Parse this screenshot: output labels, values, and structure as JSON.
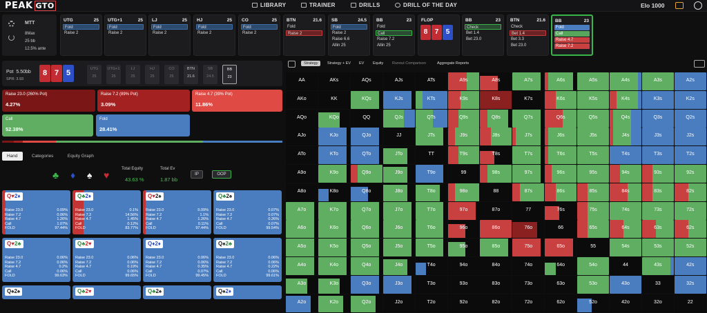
{
  "nav": {
    "logo_a": "PEAK",
    "logo_b": "GTO",
    "library": "LIBRARY",
    "trainer": "TRAINER",
    "drills": "DRILLS",
    "drill_of_day": "DRILL OF THE DAY",
    "elo": "Elo 1000"
  },
  "settings": {
    "game": "MTT",
    "format": "8Max",
    "depth": "25 bb",
    "ante": "12.5% ante"
  },
  "positions": [
    {
      "pos": "UTG",
      "stack": "25",
      "acts": [
        {
          "t": "Fold",
          "s": "sel-blue"
        },
        {
          "t": "Raise 2",
          "s": ""
        }
      ]
    },
    {
      "pos": "UTG+1",
      "stack": "25",
      "acts": [
        {
          "t": "Fold",
          "s": "sel-blue"
        },
        {
          "t": "Raise 2",
          "s": ""
        }
      ]
    },
    {
      "pos": "LJ",
      "stack": "25",
      "acts": [
        {
          "t": "Fold",
          "s": "sel-blue"
        },
        {
          "t": "Raise 2",
          "s": ""
        }
      ]
    },
    {
      "pos": "HJ",
      "stack": "25",
      "acts": [
        {
          "t": "Fold",
          "s": "sel-blue"
        },
        {
          "t": "Raise 2",
          "s": ""
        }
      ]
    },
    {
      "pos": "CO",
      "stack": "25",
      "acts": [
        {
          "t": "Fold",
          "s": "sel-blue"
        },
        {
          "t": "Raise 2",
          "s": ""
        }
      ]
    },
    {
      "pos": "BTN",
      "stack": "21.6",
      "acts": [
        {
          "t": "Fold",
          "s": ""
        },
        {
          "t": "Raise 2",
          "s": "sel-red"
        }
      ]
    },
    {
      "pos": "SB",
      "stack": "24.5",
      "acts": [
        {
          "t": "Fold",
          "s": "sel-blue"
        },
        {
          "t": "Raise 2",
          "s": ""
        },
        {
          "t": "Raise 6.6",
          "s": ""
        },
        {
          "t": "Allin 25",
          "s": ""
        }
      ]
    },
    {
      "pos": "BB",
      "stack": "23",
      "acts": [
        {
          "t": "Fold",
          "s": ""
        },
        {
          "t": "Call",
          "s": "sel-green"
        },
        {
          "t": "Raise 7.2",
          "s": ""
        },
        {
          "t": "Allin 25",
          "s": ""
        }
      ]
    },
    {
      "pos": "FLOP",
      "stack": "",
      "acts": []
    },
    {
      "pos": "BB",
      "stack": "23",
      "acts": [
        {
          "t": "Check",
          "s": "sel-green"
        },
        {
          "t": "Bet 1.4",
          "s": ""
        },
        {
          "t": "Bet 23.0",
          "s": ""
        }
      ]
    },
    {
      "pos": "BTN",
      "stack": "21.6",
      "acts": [
        {
          "t": "Check",
          "s": ""
        },
        {
          "t": "Bet 1.4",
          "s": "sel-red"
        },
        {
          "t": "Bet 3.3",
          "s": ""
        },
        {
          "t": "Bet 23.0",
          "s": ""
        }
      ]
    },
    {
      "pos": "BB",
      "stack": "23",
      "acts": [
        {
          "t": "Fold",
          "s": "fill-blue"
        },
        {
          "t": "Call",
          "s": "fill-green"
        },
        {
          "t": "Raise 4.7",
          "s": "fill-red"
        },
        {
          "t": "Raise 7.2",
          "s": "fill-red"
        }
      ]
    }
  ],
  "flop_cards": [
    {
      "r": "8",
      "c": "c-red"
    },
    {
      "r": "7",
      "c": "c-red"
    },
    {
      "r": "5",
      "c": "c-blue"
    }
  ],
  "pot": {
    "label": "Pot",
    "value": "5.50bb",
    "spr": "SPR: 3.93"
  },
  "seats": [
    {
      "n": "UTG",
      "v": "25"
    },
    {
      "n": "UTG+1",
      "v": "25"
    },
    {
      "n": "LJ",
      "v": "25"
    },
    {
      "n": "HJ",
      "v": "25"
    },
    {
      "n": "CO",
      "v": "25"
    },
    {
      "n": "BTN",
      "v": "21.6"
    },
    {
      "n": "SB",
      "v": "24.5"
    },
    {
      "n": "BB",
      "v": "23"
    }
  ],
  "strategy": [
    {
      "label": "Raise 23.0 (260% Pot)",
      "value": "4.27%",
      "color": "#7a1616"
    },
    {
      "label": "Raise 7.2 (89% Pot)",
      "value": "3.09%",
      "color": "#a32121"
    },
    {
      "label": "Raise 4.7 (39% Pot)",
      "value": "11.86%",
      "color": "#e04a45"
    },
    {
      "label": "Call",
      "value": "52.38%",
      "color": "#5fae62"
    },
    {
      "label": "Fold",
      "value": "28.41%",
      "color": "#4a7dc0"
    }
  ],
  "tabs": {
    "hand": "Hand",
    "categories": "Categories",
    "equity_graph": "Equity Graph"
  },
  "equity": {
    "total_equity_label": "Total Equity",
    "total_equity": "43.63 %",
    "total_ev_label": "Total Ev",
    "total_ev": "1.87 bb",
    "ip": "IP",
    "oop": "OOP"
  },
  "combos": [
    {
      "c1": "Q",
      "s1": "♥",
      "k1": "r",
      "c2": "2",
      "s2": "♦",
      "k2": "b",
      "vals": [
        "0.09%",
        "0.06%",
        "1.26%",
        "1.07%",
        "97.44%"
      ],
      "red": 0.05
    },
    {
      "c1": "Q",
      "s1": "♣",
      "k1": "g",
      "c2": "2",
      "s2": "♦",
      "k2": "b",
      "vals": [
        "0.1%",
        "14.56%",
        "1.45%",
        "0.12%",
        "83.77%"
      ],
      "red": 0.16
    },
    {
      "c1": "Q",
      "s1": "♥",
      "k1": "r",
      "c2": "2",
      "s2": "♠",
      "k2": "k",
      "vals": [
        "0.09%",
        "1.1%",
        "1.26%",
        "0.11%",
        "97.44%"
      ],
      "red": 0.04
    },
    {
      "c1": "Q",
      "s1": "♣",
      "k1": "g",
      "c2": "2",
      "s2": "♠",
      "k2": "k",
      "vals": [
        "0.07%",
        "0.07%",
        "0.26%",
        "0.07%",
        "99.54%"
      ],
      "red": 0.01
    },
    {
      "c1": "Q",
      "s1": "♥",
      "k1": "r",
      "c2": "2",
      "s2": "♣",
      "k2": "g",
      "vals": [
        "0.06%",
        "0.06%",
        "0.2%",
        "0.06%",
        "99.63%"
      ],
      "red": 0.01
    },
    {
      "c1": "Q",
      "s1": "♣",
      "k1": "g",
      "c2": "2",
      "s2": "♥",
      "k2": "r",
      "vals": [
        "0.06%",
        "0.06%",
        "0.19%",
        "0.06%",
        "99.65%"
      ],
      "red": 0.01
    },
    {
      "c1": "Q",
      "s1": "♦",
      "k1": "b",
      "c2": "2",
      "s2": "♦",
      "k2": "b",
      "vals": [
        "0.06%",
        "0.06%",
        "0.35%",
        "0.07%",
        "99.45%"
      ],
      "red": 0.01
    },
    {
      "c1": "Q",
      "s1": "♠",
      "k1": "k",
      "c2": "2",
      "s2": "♣",
      "k2": "g",
      "vals": [
        "0.06%",
        "0.06%",
        "0.22%",
        "0.06%",
        "99.61%"
      ],
      "red": 0.01
    },
    {
      "c1": "Q",
      "s1": "♠",
      "k1": "k",
      "c2": "2",
      "s2": "♠",
      "k2": "k",
      "vals": [],
      "red": 0
    },
    {
      "c1": "Q",
      "s1": "♣",
      "k1": "g",
      "c2": "2",
      "s2": "♥",
      "k2": "r",
      "vals": [],
      "red": 0
    },
    {
      "c1": "Q",
      "s1": "♣",
      "k1": "g",
      "c2": "2",
      "s2": "♠",
      "k2": "k",
      "vals": [],
      "red": 0
    },
    {
      "c1": "Q",
      "s1": "♠",
      "k1": "k",
      "c2": "2",
      "s2": "♦",
      "k2": "b",
      "vals": [],
      "red": 0
    }
  ],
  "combo_row_labels": [
    "Raise 23.0",
    "Raise 7.2",
    "Raise 4.7",
    "Call",
    "FOLD"
  ],
  "rtabs": {
    "strategy": "Strategy",
    "strategy_ev": "Strategy + EV",
    "ev": "EV",
    "equity": "Equity",
    "runout": "Runout Comparison",
    "aggregate": "Aggregate Reports"
  },
  "grid": [
    [
      "AA",
      "AKs",
      "AQs",
      "AJs",
      "ATs",
      "A9s",
      "A8s",
      "A7s",
      "A6s",
      "A5s",
      "A4s",
      "A3s",
      "A2s"
    ],
    [
      "AKo",
      "KK",
      "KQs",
      "KJs",
      "KTs",
      "K9s",
      "K8s",
      "K7s",
      "K6s",
      "K5s",
      "K4s",
      "K3s",
      "K2s"
    ],
    [
      "AQo",
      "KQo",
      "QQ",
      "QJs",
      "QTs",
      "Q9s",
      "Q8s",
      "Q7s",
      "Q6s",
      "Q5s",
      "Q4s",
      "Q3s",
      "Q2s"
    ],
    [
      "AJo",
      "KJo",
      "QJo",
      "JJ",
      "JTs",
      "J9s",
      "J8s",
      "J7s",
      "J6s",
      "J5s",
      "J4s",
      "J3s",
      "J2s"
    ],
    [
      "ATo",
      "KTo",
      "QTo",
      "JTo",
      "TT",
      "T9s",
      "T8s",
      "T7s",
      "T6s",
      "T5s",
      "T4s",
      "T3s",
      "T2s"
    ],
    [
      "A9o",
      "K9o",
      "Q9o",
      "J9o",
      "T9o",
      "99",
      "98s",
      "97s",
      "96s",
      "95s",
      "94s",
      "93s",
      "92s"
    ],
    [
      "A8o",
      "K8o",
      "Q8o",
      "J8o",
      "T8o",
      "98o",
      "88",
      "87s",
      "86s",
      "85s",
      "84s",
      "83s",
      "82s"
    ],
    [
      "A7o",
      "K7o",
      "Q7o",
      "J7o",
      "T7o",
      "97o",
      "87o",
      "77",
      "76s",
      "75s",
      "74s",
      "73s",
      "72s"
    ],
    [
      "A6o",
      "K6o",
      "Q6o",
      "J6o",
      "T6o",
      "96o",
      "86o",
      "76o",
      "66",
      "65s",
      "64s",
      "63s",
      "62s"
    ],
    [
      "A5o",
      "K5o",
      "Q5o",
      "J5o",
      "T5o",
      "95o",
      "85o",
      "75o",
      "65o",
      "55",
      "54s",
      "53s",
      "52s"
    ],
    [
      "A4o",
      "K4o",
      "Q4o",
      "J4o",
      "T4o",
      "94o",
      "84o",
      "74o",
      "64o",
      "54o",
      "44",
      "43s",
      "42s"
    ],
    [
      "A3o",
      "K3o",
      "Q3o",
      "J3o",
      "T3o",
      "93o",
      "83o",
      "73o",
      "63o",
      "53o",
      "43o",
      "33",
      "32s"
    ],
    [
      "A2o",
      "K2o",
      "Q2o",
      "J2o",
      "T2o",
      "92o",
      "82o",
      "72o",
      "62o",
      "52o",
      "42o",
      "32o",
      "22"
    ]
  ],
  "grid_strategy": [
    [
      "e",
      "e",
      "e",
      "e",
      "e",
      "R6G4",
      "R5",
      "G8",
      "R1G7",
      "G9",
      "G8B1",
      "G9",
      "B9"
    ],
    [
      "e",
      "e",
      "G8",
      "B8",
      "G2B7",
      "R4G6",
      "r9",
      "e",
      "R3G6",
      "G9",
      "R2G6B1",
      "B9",
      "B9"
    ],
    [
      "e",
      "G6",
      "e",
      "G6B3",
      "G5B4",
      "R3G6",
      "R2G6",
      "G8",
      "R5G4",
      "G9",
      "R1G5B3",
      "B9",
      "B9"
    ],
    [
      "e",
      "B8",
      "B8",
      "e",
      "G8",
      "R2G7",
      "R3G6",
      "R1G7",
      "R1G8",
      "G9",
      "R1G5B3",
      "B9",
      "B9"
    ],
    [
      "e",
      "B8",
      "B8",
      "G7",
      "e",
      "R3G6",
      "R4",
      "G8",
      "R1G8",
      "G9",
      "B9",
      "B9",
      "B9"
    ],
    [
      "e",
      "G8",
      "R2G7",
      "G7",
      "B8",
      "e",
      "R2G7",
      "G8",
      "R2G7",
      "G9",
      "R3G6",
      "R3G6",
      "G9"
    ],
    [
      "e",
      "B3",
      "B5",
      "G7",
      "G7",
      "R2G7",
      "e",
      "R2G7",
      "R3G6",
      "R3G6",
      "R5G4",
      "R3G6",
      "R4G5"
    ],
    [
      "G8",
      "G8",
      "G8",
      "G8",
      "G8",
      "R8",
      "e",
      "e",
      "R4",
      "R3G6",
      "G9",
      "G9",
      "G9"
    ],
    [
      "G8",
      "G8",
      "G8",
      "G8",
      "G8",
      "R5",
      "R9",
      "r7",
      "e",
      "R3G6",
      "R4G5",
      "R4G5",
      "R4G5"
    ],
    [
      "G8",
      "G8",
      "G8",
      "G8",
      "G8",
      "G5",
      "G8",
      "R8",
      "R8",
      "e",
      "G9",
      "G9",
      "G9"
    ],
    [
      "G8",
      "G8",
      "G8",
      "G7",
      "B3",
      "e",
      "e",
      "e",
      "G3",
      "G9",
      "e",
      "G8B1",
      "B9"
    ],
    [
      "G6",
      "G6",
      "B8",
      "B8",
      "e",
      "e",
      "e",
      "e",
      "e",
      "G9",
      "B9",
      "e",
      "B9"
    ],
    [
      "B7",
      "G7",
      "G7",
      "e",
      "e",
      "e",
      "e",
      "e",
      "e",
      "B4",
      "e",
      "e",
      "e"
    ]
  ]
}
